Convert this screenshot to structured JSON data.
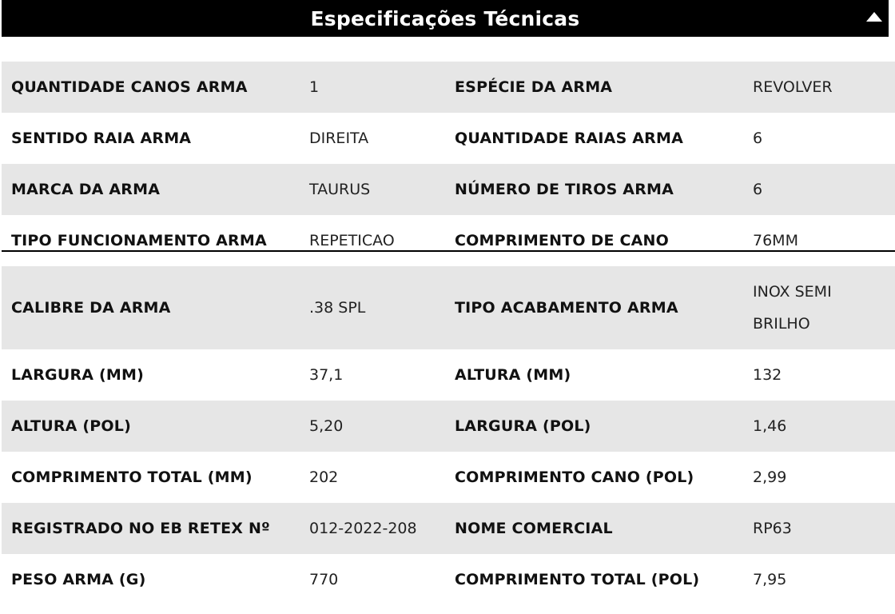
{
  "header": {
    "title": "Especificações Técnicas",
    "toggle_icon": "triangle-up-icon"
  },
  "rows": [
    {
      "label1": "QUANTIDADE CANOS ARMA",
      "value1": "1",
      "label2": "ESPÉCIE DA ARMA",
      "value2": "REVOLVER"
    },
    {
      "label1": "SENTIDO RAIA ARMA",
      "value1": "DIREITA",
      "label2": "QUANTIDADE RAIAS ARMA",
      "value2": "6"
    },
    {
      "label1": "MARCA DA ARMA",
      "value1": "TAURUS",
      "label2": "NÚMERO DE TIROS ARMA",
      "value2": "6"
    },
    {
      "label1": "TIPO FUNCIONAMENTO ARMA",
      "value1": "REPETICAO",
      "label2": "COMPRIMENTO DE CANO",
      "value2": "76MM"
    },
    {
      "label1": "CALIBRE DA ARMA",
      "value1": ".38 SPL",
      "label2": "TIPO ACABAMENTO ARMA",
      "value2": "INOX SEMI BRILHO"
    },
    {
      "label1": "LARGURA (MM)",
      "value1": "37,1",
      "label2": "ALTURA (MM)",
      "value2": "132"
    },
    {
      "label1": "ALTURA (POL)",
      "value1": "5,20",
      "label2": "LARGURA (POL)",
      "value2": "1,46"
    },
    {
      "label1": "COMPRIMENTO TOTAL (MM)",
      "value1": "202",
      "label2": "COMPRIMENTO CANO (POL)",
      "value2": "2,99"
    },
    {
      "label1": "REGISTRADO NO EB RETEX Nº",
      "value1": "012-2022-208",
      "label2": "NOME COMERCIAL",
      "value2": "RP63"
    },
    {
      "label1": "PESO ARMA (G)",
      "value1": "770",
      "label2": "COMPRIMENTO TOTAL (POL)",
      "value2": "7,95"
    }
  ],
  "colors": {
    "header_bg": "#000000",
    "header_text": "#ffffff",
    "row_shade": "#e6e6e6"
  }
}
